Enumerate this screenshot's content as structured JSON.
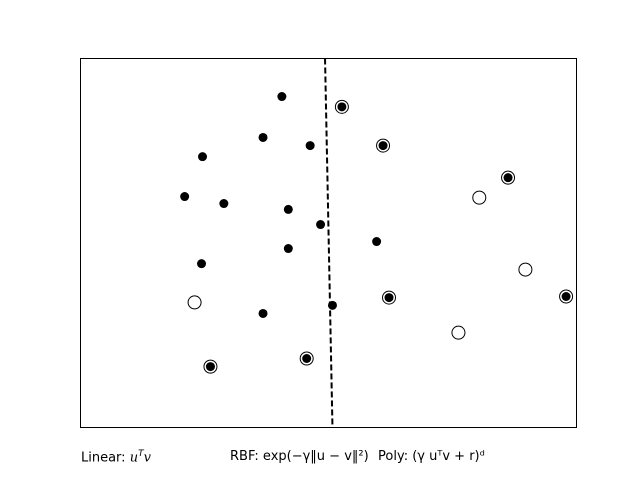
{
  "chart_data": {
    "type": "scatter",
    "title": "",
    "xlabel": "",
    "ylabel": "",
    "xlim": [
      0,
      1
    ],
    "ylim": [
      0,
      1
    ],
    "grid": false,
    "axis_ticks": false,
    "series": [
      {
        "marker": "filled",
        "color": "#000000",
        "points": [
          {
            "x": 0.406,
            "y": 0.897
          },
          {
            "x": 0.527,
            "y": 0.869
          },
          {
            "x": 0.368,
            "y": 0.786
          },
          {
            "x": 0.463,
            "y": 0.764
          },
          {
            "x": 0.61,
            "y": 0.764
          },
          {
            "x": 0.246,
            "y": 0.734
          },
          {
            "x": 0.862,
            "y": 0.677
          },
          {
            "x": 0.21,
            "y": 0.626
          },
          {
            "x": 0.289,
            "y": 0.607
          },
          {
            "x": 0.419,
            "y": 0.591
          },
          {
            "x": 0.484,
            "y": 0.55
          },
          {
            "x": 0.597,
            "y": 0.504
          },
          {
            "x": 0.419,
            "y": 0.485
          },
          {
            "x": 0.244,
            "y": 0.444
          },
          {
            "x": 0.622,
            "y": 0.352
          },
          {
            "x": 0.979,
            "y": 0.355
          },
          {
            "x": 0.508,
            "y": 0.331
          },
          {
            "x": 0.368,
            "y": 0.309
          },
          {
            "x": 0.456,
            "y": 0.187
          },
          {
            "x": 0.262,
            "y": 0.165
          }
        ]
      },
      {
        "marker": "open",
        "color": "#000000",
        "points": [
          {
            "x": 0.527,
            "y": 0.869
          },
          {
            "x": 0.61,
            "y": 0.764
          },
          {
            "x": 0.862,
            "y": 0.677
          },
          {
            "x": 0.804,
            "y": 0.623
          },
          {
            "x": 0.897,
            "y": 0.428
          },
          {
            "x": 0.23,
            "y": 0.339
          },
          {
            "x": 0.622,
            "y": 0.352
          },
          {
            "x": 0.979,
            "y": 0.355
          },
          {
            "x": 0.762,
            "y": 0.257
          },
          {
            "x": 0.456,
            "y": 0.187
          },
          {
            "x": 0.262,
            "y": 0.165
          }
        ]
      }
    ],
    "decision_boundary": {
      "style": "dashed",
      "color": "#000000",
      "points": [
        {
          "x": 0.493,
          "y": 1.0
        },
        {
          "x": 0.508,
          "y": 0.0
        }
      ]
    }
  },
  "captions": {
    "linear_prefix": "Linear: ",
    "linear_formula": "u",
    "linear_sup": "T",
    "linear_suffix": "v",
    "rbf": "RBF: exp(−γ‖u − v‖²)",
    "poly": "Poly: (γ uᵀv + r)ᵈ"
  }
}
